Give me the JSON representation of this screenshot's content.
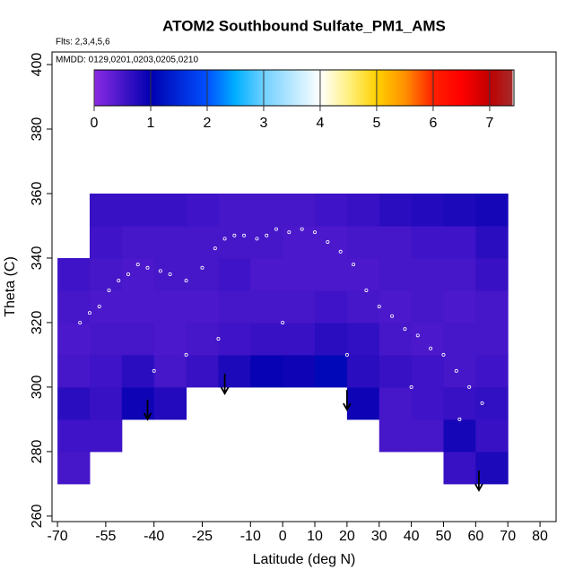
{
  "chart_data": {
    "type": "curtain",
    "title": "ATOM2 Southbound Sulfate_PM1_AMS",
    "subtitle": "Flts: 2,3,4,5,6",
    "annotation": "MMDD: 0129,0201,0203,0205,0210",
    "x_label": "Latitude (deg N)",
    "y_label": "Theta (C)",
    "xlim": [
      -71.7,
      85
    ],
    "ylim": [
      258.3,
      403.9
    ],
    "xticks": [
      -70,
      -55,
      -40,
      -25,
      -10,
      0,
      10,
      20,
      30,
      40,
      50,
      60,
      70,
      80
    ],
    "yticks": [
      260,
      280,
      300,
      320,
      340,
      360,
      380,
      400
    ],
    "lat_edges": [
      -70,
      -60,
      -50,
      -40,
      -30,
      -20,
      -10,
      0,
      10,
      20,
      30,
      40,
      50,
      60,
      70
    ],
    "theta_edges": [
      270,
      280,
      290,
      300,
      310,
      320,
      330,
      340,
      350,
      360
    ],
    "z": [
      [
        0.5,
        null,
        null,
        null,
        null,
        null,
        null,
        null,
        null,
        null,
        null,
        null,
        0.6,
        0.8
      ],
      [
        0.55,
        0.55,
        null,
        null,
        null,
        null,
        null,
        null,
        null,
        null,
        0.5,
        0.5,
        0.85,
        0.6
      ],
      [
        0.7,
        0.6,
        0.9,
        0.75,
        null,
        null,
        null,
        null,
        null,
        0.9,
        0.5,
        0.55,
        0.6,
        0.65
      ],
      [
        0.5,
        0.55,
        0.7,
        0.5,
        0.6,
        0.8,
        0.95,
        0.9,
        1.1,
        0.7,
        0.6,
        0.55,
        0.5,
        0.55
      ],
      [
        0.45,
        0.5,
        0.5,
        0.45,
        0.5,
        0.55,
        0.6,
        0.6,
        0.7,
        0.65,
        0.5,
        0.45,
        0.5,
        0.5
      ],
      [
        0.5,
        0.45,
        0.45,
        0.45,
        0.45,
        0.5,
        0.5,
        0.5,
        0.55,
        0.5,
        0.45,
        0.5,
        0.45,
        0.5
      ],
      [
        0.55,
        0.5,
        0.45,
        0.5,
        0.5,
        0.55,
        0.45,
        0.45,
        0.45,
        0.45,
        0.5,
        0.5,
        0.5,
        0.6
      ],
      [
        null,
        0.55,
        0.5,
        0.5,
        0.5,
        0.5,
        0.5,
        0.45,
        0.45,
        0.5,
        0.5,
        0.55,
        0.55,
        0.7
      ],
      [
        null,
        0.6,
        0.6,
        0.6,
        0.55,
        0.5,
        0.5,
        0.5,
        0.55,
        0.6,
        0.7,
        0.75,
        0.8,
        0.85
      ]
    ],
    "colorscale": {
      "values": [
        0,
        1,
        2,
        2.5,
        3,
        4,
        4.5,
        5,
        5.5,
        6,
        6.5,
        7,
        7.4
      ],
      "colors": [
        "#8b2be2",
        "#0000b0",
        "#0050ff",
        "#00b0ff",
        "#70d0ff",
        "#ffffff",
        "#fff080",
        "#ffd000",
        "#ff9000",
        "#ff2000",
        "#ff0000",
        "#c00000",
        "#a52a2a"
      ]
    },
    "colorbar_lim": [
      0,
      7.43
    ],
    "colorbar_ticks": [
      0,
      1,
      2,
      3,
      4,
      5,
      6,
      7
    ],
    "track": {
      "x": [
        -63,
        -60,
        -57,
        -54,
        -51,
        -48,
        -45,
        -42,
        -38,
        -35,
        -30,
        -25,
        -21,
        -18,
        -15,
        -12,
        -8,
        -5,
        -2,
        2,
        6,
        10,
        14,
        18,
        22,
        26,
        30,
        34,
        38,
        42,
        46,
        50,
        54,
        58,
        62,
        -40,
        -30,
        -20,
        0,
        20,
        40,
        55
      ],
      "y": [
        320,
        323,
        325,
        330,
        333,
        335,
        338,
        337,
        336,
        335,
        333,
        337,
        343,
        346,
        347,
        347,
        346,
        347,
        349,
        348,
        349,
        348,
        345,
        342,
        338,
        330,
        325,
        322,
        318,
        316,
        312,
        310,
        305,
        300,
        295,
        305,
        310,
        315,
        320,
        310,
        300,
        290
      ]
    },
    "profile_markers": {
      "x": [
        -42,
        -18,
        20,
        61
      ],
      "y": [
        290,
        298,
        293,
        268
      ]
    }
  }
}
